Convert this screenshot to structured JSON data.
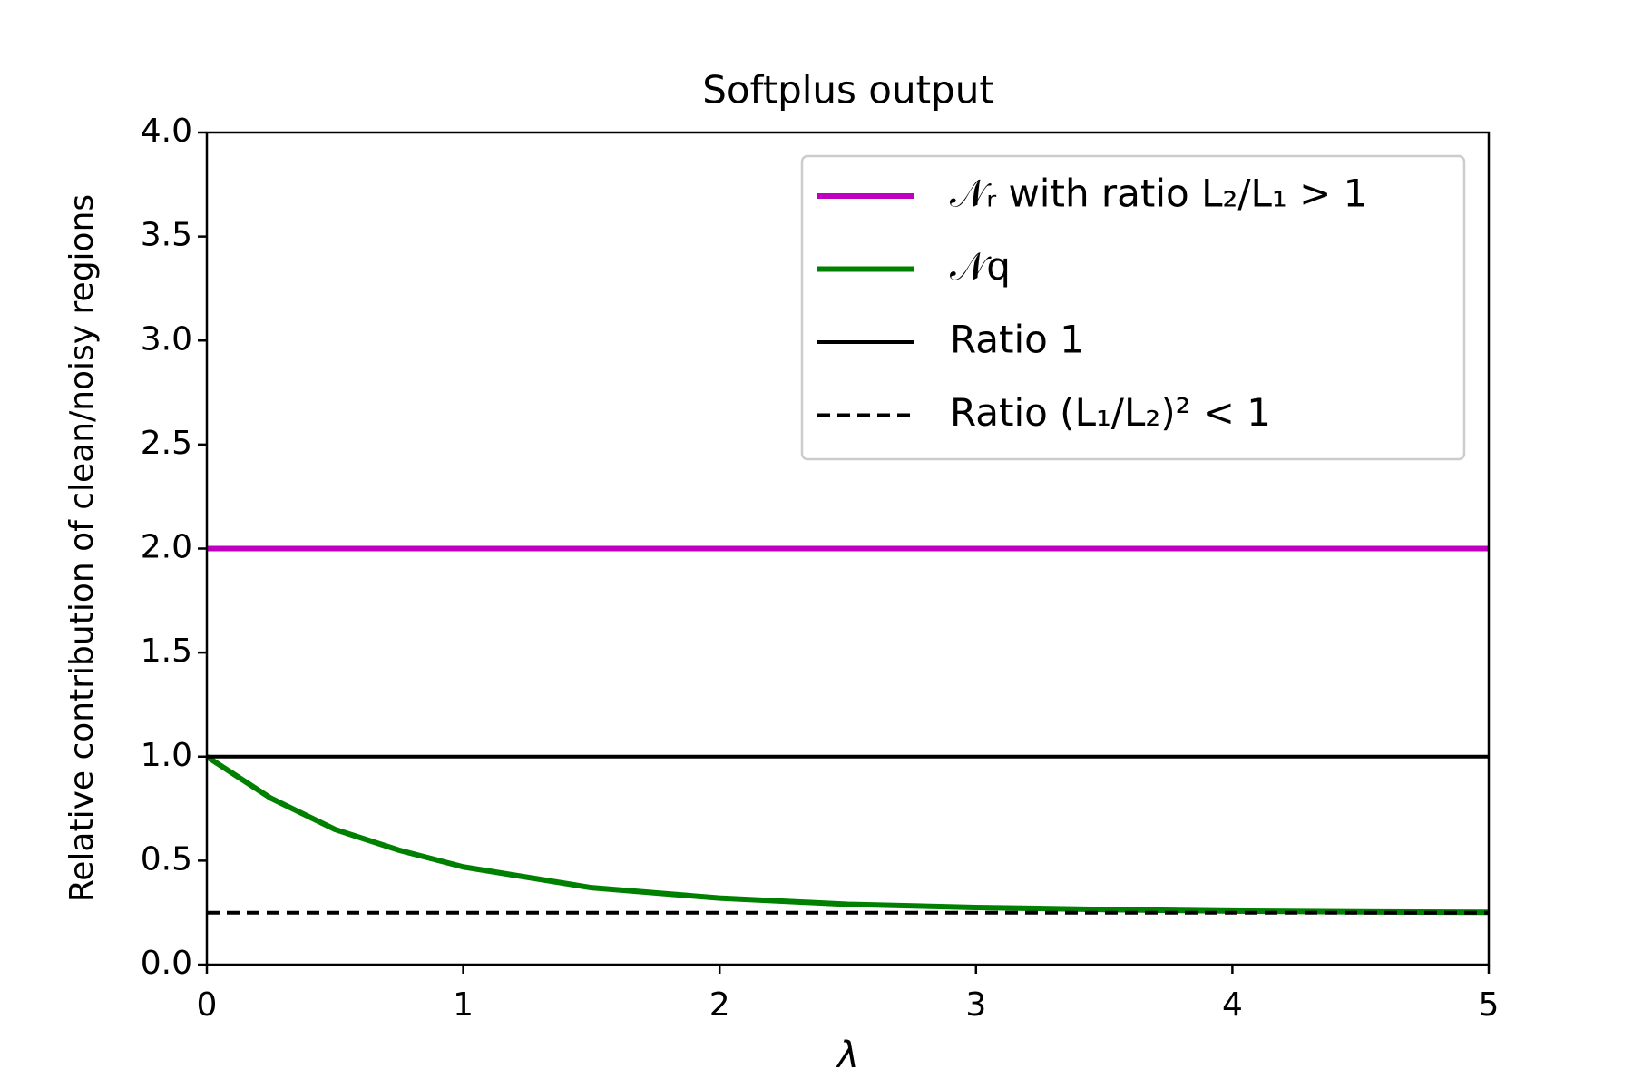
{
  "chart_data": {
    "type": "line",
    "title": "Softplus output",
    "xlabel": "λ",
    "ylabel": "Relative contribution of clean/noisy regions",
    "x": [
      0,
      0.25,
      0.5,
      0.75,
      1,
      1.5,
      2,
      2.5,
      3,
      3.5,
      4,
      4.5,
      5
    ],
    "series": [
      {
        "name": "𝒩ᵣ with ratio L₂/L₁ > 1",
        "color": "#bf00bf",
        "width": 6,
        "values": [
          2,
          2,
          2,
          2,
          2,
          2,
          2,
          2,
          2,
          2,
          2,
          2,
          2
        ]
      },
      {
        "name": "𝒩q",
        "color": "#008000",
        "width": 6,
        "values": [
          1.0,
          0.8,
          0.65,
          0.55,
          0.47,
          0.37,
          0.32,
          0.29,
          0.275,
          0.265,
          0.258,
          0.254,
          0.252
        ]
      },
      {
        "name": "Ratio 1",
        "color": "#000000",
        "width": 4,
        "values": [
          1,
          1,
          1,
          1,
          1,
          1,
          1,
          1,
          1,
          1,
          1,
          1,
          1
        ]
      },
      {
        "name": "Ratio (L₁/L₂)² < 1",
        "color": "#000000",
        "width": 4,
        "dashed": true,
        "values": [
          0.25,
          0.25,
          0.25,
          0.25,
          0.25,
          0.25,
          0.25,
          0.25,
          0.25,
          0.25,
          0.25,
          0.25,
          0.25
        ]
      }
    ],
    "xlim": [
      0,
      5
    ],
    "xticks": [
      0,
      1,
      2,
      3,
      4,
      5
    ],
    "ylim": [
      0,
      4
    ],
    "yticks": [
      {
        "value": 0,
        "label": "0.0"
      },
      0.5,
      {
        "value": 1,
        "label": "1.0"
      },
      1.5,
      {
        "value": 2,
        "label": "2.0"
      },
      2.5,
      {
        "value": 3,
        "label": "3.0"
      },
      3.5,
      {
        "value": 4,
        "label": "4.0"
      }
    ],
    "legend": "upper right",
    "grid": false
  }
}
